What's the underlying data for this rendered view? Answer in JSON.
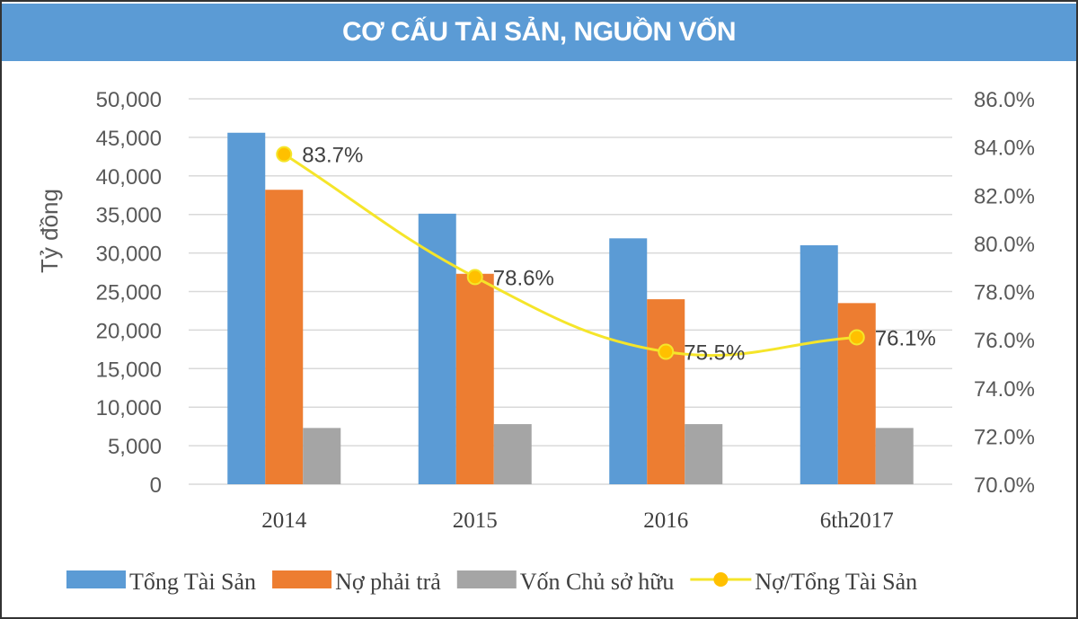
{
  "chart_data": {
    "type": "bar",
    "title": "CƠ CẤU TÀI SẢN, NGUỒN VỐN",
    "ylabel": "Tỷ đồng",
    "ylim": [
      0,
      50000
    ],
    "y2lim": [
      70.0,
      86.0
    ],
    "yticks": [
      "0",
      "5,000",
      "10,000",
      "15,000",
      "20,000",
      "25,000",
      "30,000",
      "35,000",
      "40,000",
      "45,000",
      "50,000"
    ],
    "y2ticks": [
      "70.0%",
      "72.0%",
      "74.0%",
      "76.0%",
      "78.0%",
      "80.0%",
      "82.0%",
      "84.0%",
      "86.0%"
    ],
    "categories": [
      "2014",
      "2015",
      "2016",
      "6th2017"
    ],
    "series": [
      {
        "name": "Tổng Tài Sản",
        "type": "bar",
        "color": "#5b9bd5",
        "values": [
          45600,
          35100,
          31900,
          31000
        ]
      },
      {
        "name": "Nợ phải trả",
        "type": "bar",
        "color": "#ed7d31",
        "values": [
          38200,
          27300,
          24000,
          23500
        ]
      },
      {
        "name": "Vốn Chủ sở hữu",
        "type": "bar",
        "color": "#a5a5a5",
        "values": [
          7300,
          7800,
          7800,
          7300
        ]
      },
      {
        "name": "Nợ/Tổng Tài Sản",
        "type": "line",
        "axis": "right",
        "color": "#f5e52a",
        "marker_color": "#ffc000",
        "values": [
          83.7,
          78.6,
          75.5,
          76.1
        ],
        "labels": [
          "83.7%",
          "78.6%",
          "75.5%",
          "76.1%"
        ]
      }
    ],
    "grid": true,
    "legend": "bottom"
  }
}
